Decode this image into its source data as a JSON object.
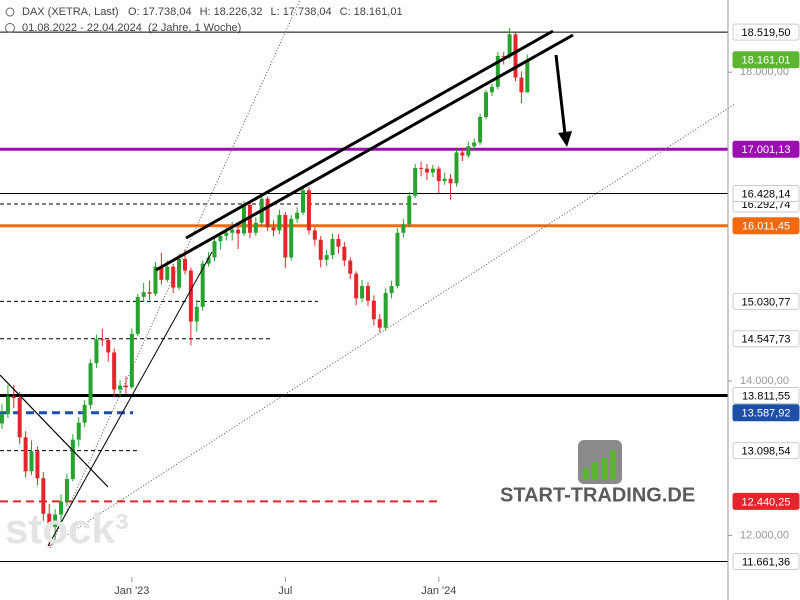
{
  "chart_data": {
    "type": "candlestick",
    "title": "DAX (XETRA, Last)",
    "quote": [
      {
        "key": "O:",
        "value": "17.738,04"
      },
      {
        "key": "H:",
        "value": "18.226,32"
      },
      {
        "key": "L:",
        "value": "17.738,04"
      },
      {
        "key": "C:",
        "value": "18.161,01"
      }
    ],
    "period": "01.08.2022 - 22.04.2024",
    "span": "(2 Jahre, 1 Woche)",
    "watermark": "stock³",
    "logo": "START-TRADING.DE",
    "up_color": "#27a22d",
    "down_color": "#e3262b",
    "xlim": [
      -0.34,
      123
    ],
    "xticks": [
      {
        "value": 22,
        "label": "Jan '23"
      },
      {
        "value": 48,
        "label": "Jul"
      },
      {
        "value": 74,
        "label": "Jan '24"
      }
    ],
    "ylim": [
      11163,
      18935
    ],
    "yticks": [
      {
        "value": 12000,
        "label": "12.000,00"
      },
      {
        "value": 14000,
        "label": "14.000,00"
      },
      {
        "value": 18000,
        "label": "18.000,00"
      }
    ],
    "ohlc": [
      [
        13450,
        13700,
        13380,
        13570
      ],
      [
        13570,
        13950,
        13520,
        13800
      ],
      [
        13800,
        13950,
        13650,
        13780
      ],
      [
        13780,
        13860,
        13180,
        13270
      ],
      [
        13270,
        13350,
        12750,
        12830
      ],
      [
        12830,
        13230,
        12780,
        13090
      ],
      [
        13090,
        13150,
        12650,
        12740
      ],
      [
        12740,
        12820,
        12190,
        12280
      ],
      [
        12280,
        12410,
        11860,
        12110
      ],
      [
        12110,
        12340,
        11940,
        12270
      ],
      [
        12270,
        12530,
        12130,
        12440
      ],
      [
        12440,
        12800,
        12380,
        12730
      ],
      [
        12730,
        13310,
        12700,
        13240
      ],
      [
        13240,
        13530,
        13150,
        13460
      ],
      [
        13460,
        13750,
        13400,
        13690
      ],
      [
        13690,
        14280,
        13640,
        14230
      ],
      [
        14230,
        14600,
        14170,
        14540
      ],
      [
        14540,
        14680,
        14450,
        14530
      ],
      [
        14530,
        14560,
        14250,
        14370
      ],
      [
        14370,
        14420,
        13790,
        13890
      ],
      [
        13890,
        14010,
        13800,
        13940
      ],
      [
        13940,
        14060,
        13830,
        13920
      ],
      [
        13920,
        14680,
        13900,
        14610
      ],
      [
        14610,
        15130,
        14580,
        15090
      ],
      [
        15090,
        15270,
        15030,
        15150
      ],
      [
        15150,
        15300,
        15050,
        15130
      ],
      [
        15130,
        15540,
        15100,
        15480
      ],
      [
        15480,
        15660,
        15250,
        15310
      ],
      [
        15310,
        15560,
        15280,
        15480
      ],
      [
        15480,
        15520,
        15140,
        15210
      ],
      [
        15210,
        15650,
        15180,
        15580
      ],
      [
        15580,
        15700,
        15380,
        15430
      ],
      [
        15430,
        15470,
        14460,
        14770
      ],
      [
        14770,
        15050,
        14640,
        14960
      ],
      [
        14960,
        15560,
        14910,
        15520
      ],
      [
        15520,
        15670,
        15480,
        15600
      ],
      [
        15600,
        15880,
        15550,
        15810
      ],
      [
        15810,
        15930,
        15700,
        15880
      ],
      [
        15880,
        15990,
        15820,
        15920
      ],
      [
        15920,
        16060,
        15820,
        15960
      ],
      [
        15960,
        16000,
        15710,
        15910
      ],
      [
        15910,
        16330,
        15880,
        16280
      ],
      [
        16280,
        16330,
        15850,
        15920
      ],
      [
        15920,
        16120,
        15880,
        16050
      ],
      [
        16050,
        16430,
        16000,
        16360
      ],
      [
        16360,
        16390,
        15940,
        15990
      ],
      [
        15990,
        16080,
        15880,
        15950
      ],
      [
        15950,
        16220,
        15900,
        16150
      ],
      [
        16150,
        16190,
        15460,
        15600
      ],
      [
        15600,
        16150,
        15560,
        16100
      ],
      [
        16100,
        16250,
        16050,
        16180
      ],
      [
        16180,
        16530,
        16150,
        16470
      ],
      [
        16470,
        16510,
        15900,
        15950
      ],
      [
        15950,
        16000,
        15750,
        15830
      ],
      [
        15830,
        15880,
        15470,
        15570
      ],
      [
        15570,
        15700,
        15490,
        15630
      ],
      [
        15630,
        15910,
        15580,
        15840
      ],
      [
        15840,
        15900,
        15650,
        15740
      ],
      [
        15740,
        15800,
        15490,
        15560
      ],
      [
        15560,
        15600,
        15320,
        15390
      ],
      [
        15390,
        15420,
        14980,
        15070
      ],
      [
        15070,
        15310,
        15020,
        15230
      ],
      [
        15230,
        15280,
        14970,
        15040
      ],
      [
        15040,
        15110,
        14720,
        14800
      ],
      [
        14800,
        14870,
        14630,
        14690
      ],
      [
        14690,
        15200,
        14650,
        15140
      ],
      [
        15140,
        15300,
        15070,
        15230
      ],
      [
        15230,
        15980,
        15200,
        15920
      ],
      [
        15920,
        16100,
        15860,
        16030
      ],
      [
        16030,
        16450,
        15990,
        16400
      ],
      [
        16400,
        16810,
        16370,
        16760
      ],
      [
        16760,
        16840,
        16650,
        16750
      ],
      [
        16750,
        16810,
        16600,
        16700
      ],
      [
        16700,
        16800,
        16640,
        16750
      ],
      [
        16750,
        16780,
        16430,
        16590
      ],
      [
        16590,
        16700,
        16540,
        16620
      ],
      [
        16620,
        16680,
        16350,
        16560
      ],
      [
        16560,
        17000,
        16520,
        16960
      ],
      [
        16960,
        17010,
        16850,
        16920
      ],
      [
        16920,
        17100,
        16890,
        17040
      ],
      [
        17040,
        17140,
        16980,
        17090
      ],
      [
        17090,
        17460,
        17060,
        17420
      ],
      [
        17420,
        17770,
        17390,
        17740
      ],
      [
        17740,
        17850,
        17690,
        17810
      ],
      [
        17810,
        18260,
        17780,
        18210
      ],
      [
        18210,
        18260,
        18100,
        18200
      ],
      [
        18200,
        18570,
        18170,
        18490
      ],
      [
        18490,
        18520,
        17880,
        17930
      ],
      [
        17930,
        18010,
        17600,
        17740
      ],
      [
        17738.04,
        18226.32,
        17738.04,
        18161.01
      ]
    ],
    "levels": [
      {
        "value": 18519.5,
        "label": "18.519,50",
        "color": "#000000",
        "line": "solid",
        "width": 1
      },
      {
        "value": 18161.01,
        "label": "18.161,01",
        "color": "#5cb531",
        "line": "none",
        "width": 1,
        "filled": true
      },
      {
        "value": 17001.13,
        "label": "17.001,13",
        "color": "#9b0fb0",
        "line": "solid",
        "width": 3,
        "filled": true
      },
      {
        "value": 16428.14,
        "label": "16.428,14",
        "color": "#000000",
        "line": "solid",
        "width": 1
      },
      {
        "value": 16292.74,
        "label": "16.292,74",
        "color": "#000000",
        "line": "dashed",
        "width": 1
      },
      {
        "value": 16011.45,
        "label": "16.011,45",
        "color": "#f26a10",
        "line": "solid",
        "width": 3,
        "filled": true
      },
      {
        "value": 15030.77,
        "label": "15.030,77",
        "color": "#000000",
        "line": "dashed",
        "width": 1
      },
      {
        "value": 14547.73,
        "label": "14.547,73",
        "color": "#000000",
        "line": "dashed",
        "width": 1
      },
      {
        "value": 13811.55,
        "label": "13.811,55",
        "color": "#000000",
        "line": "solid",
        "width": 3
      },
      {
        "value": 13587.92,
        "label": "13.587,92",
        "color": "#1d4fa8",
        "line": "dashed",
        "width": 3,
        "filled": true
      },
      {
        "value": 13098.54,
        "label": "13.098,54",
        "color": "#000000",
        "line": "dashed",
        "width": 1
      },
      {
        "value": 12440.25,
        "label": "12.440,25",
        "color": "#e3262b",
        "line": "dashed",
        "width": 2,
        "filled": true
      },
      {
        "value": 11661.36,
        "label": "11.661,36",
        "color": "#000000",
        "line": "solid",
        "width": 1
      }
    ]
  }
}
